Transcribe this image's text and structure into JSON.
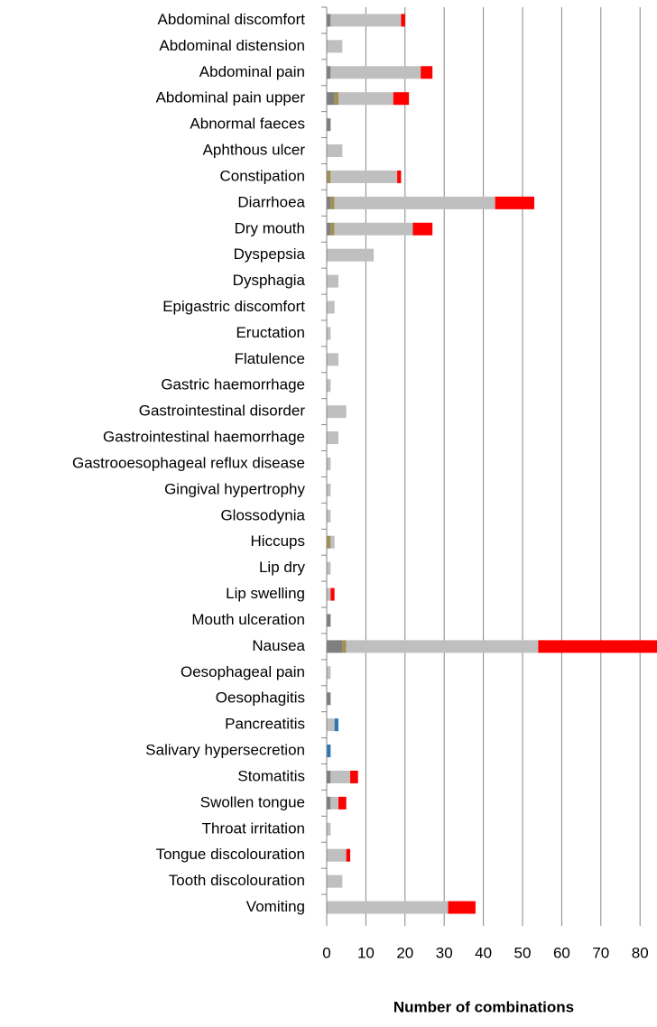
{
  "chart_data": {
    "type": "bar",
    "orientation": "horizontal",
    "stacked": true,
    "x_label": "Number of combinations",
    "categories": [
      "Abdominal discomfort",
      "Abdominal distension",
      "Abdominal pain",
      "Abdominal pain upper",
      "Abnormal faeces",
      "Aphthous ulcer",
      "Constipation",
      "Diarrhoea",
      "Dry mouth",
      "Dyspepsia",
      "Dysphagia",
      "Epigastric discomfort",
      "Eructation",
      "Flatulence",
      "Gastric haemorrhage",
      "Gastrointestinal disorder",
      "Gastrointestinal haemorrhage",
      "Gastrooesophageal reflux disease",
      "Gingival hypertrophy",
      "Glossodynia",
      "Hiccups",
      "Lip dry",
      "Lip swelling",
      "Mouth ulceration",
      "Nausea",
      "Oesophageal pain",
      "Oesophagitis",
      "Pancreatitis",
      "Salivary hypersecretion",
      "Stomatitis",
      "Swollen tongue",
      "Throat irritation",
      "Tongue discolouration",
      "Tooth discolouration",
      "Vomiting"
    ],
    "series": [
      {
        "color": "#7f7f7f",
        "values": [
          1,
          0,
          1,
          2,
          1,
          0,
          0,
          1,
          1,
          0,
          0,
          0,
          0,
          0,
          0,
          0,
          0,
          0,
          0,
          0,
          0,
          0,
          0,
          1,
          4,
          0,
          1,
          0,
          0,
          1,
          1,
          0,
          0,
          0,
          0
        ]
      },
      {
        "color": "#a09050",
        "values": [
          0,
          0,
          0,
          1,
          0,
          0,
          1,
          1,
          1,
          0,
          0,
          0,
          0,
          0,
          0,
          0,
          0,
          0,
          0,
          0,
          1,
          0,
          0,
          0,
          1,
          0,
          0,
          0,
          0,
          0,
          0,
          0,
          0,
          0,
          0
        ]
      },
      {
        "color": "#bfbfbf",
        "values": [
          18,
          4,
          23,
          14,
          0,
          4,
          17,
          41,
          20,
          12,
          3,
          2,
          1,
          3,
          1,
          5,
          3,
          1,
          1,
          1,
          1,
          1,
          1,
          0,
          49,
          1,
          0,
          2,
          0,
          5,
          2,
          1,
          5,
          4,
          31
        ]
      },
      {
        "color": "#2e75b6",
        "values": [
          0,
          0,
          0,
          0,
          0,
          0,
          0,
          0,
          0,
          0,
          0,
          0,
          0,
          0,
          0,
          0,
          0,
          0,
          0,
          0,
          0,
          0,
          0,
          0,
          0,
          0,
          0,
          1,
          1,
          0,
          0,
          0,
          0,
          0,
          0
        ]
      },
      {
        "color": "#ff0000",
        "values": [
          1,
          0,
          3,
          4,
          0,
          0,
          1,
          10,
          5,
          0,
          0,
          0,
          0,
          0,
          0,
          0,
          0,
          0,
          0,
          0,
          0,
          0,
          1,
          0,
          31,
          0,
          0,
          0,
          0,
          2,
          2,
          0,
          1,
          0,
          7
        ]
      }
    ],
    "xlim": [
      0,
      84
    ],
    "xticks": [
      0,
      10,
      20,
      30,
      40,
      50,
      60,
      70,
      80
    ],
    "grid": true
  }
}
